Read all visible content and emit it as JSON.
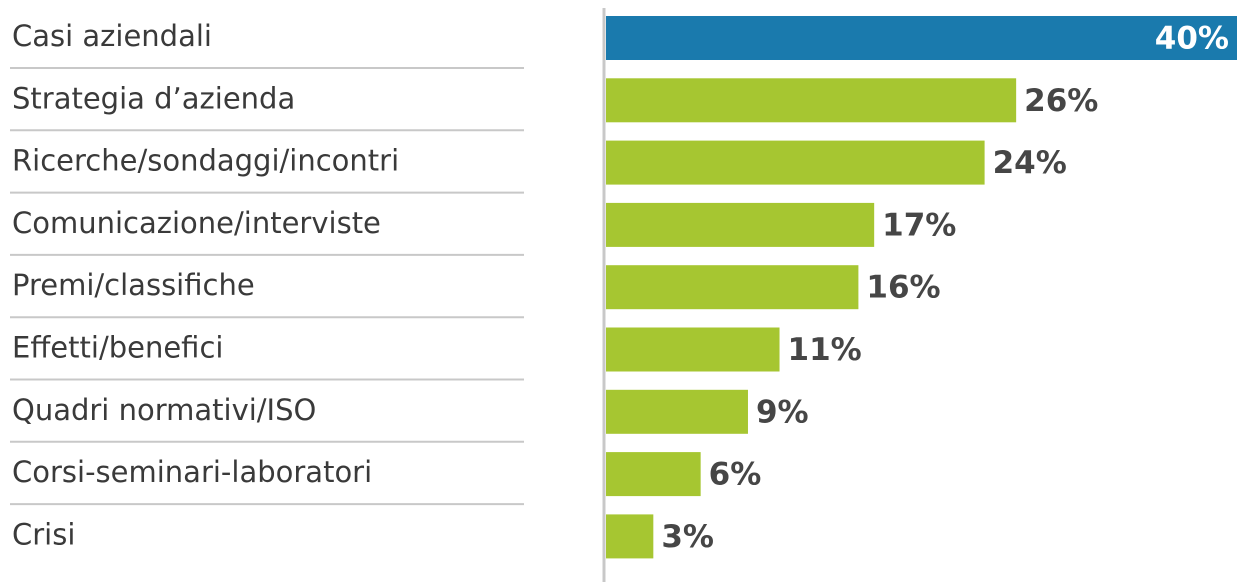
{
  "chart_data": {
    "type": "bar",
    "orientation": "horizontal",
    "categories": [
      "Casi aziendali",
      "Strategia d’azienda",
      "Ricerche/sondaggi/incontri",
      "Comunicazione/interviste",
      "Premi/classifiche",
      "Effetti/benefici",
      "Quadri normativi/ISO",
      "Corsi-seminari-laboratori",
      "Crisi"
    ],
    "values": [
      40,
      26,
      24,
      17,
      16,
      11,
      9,
      6,
      3
    ],
    "value_labels": [
      "40%",
      "26%",
      "24%",
      "17%",
      "16%",
      "11%",
      "9%",
      "6%",
      "3%"
    ],
    "colors": [
      "#1a7aad",
      "#a6c631",
      "#a6c631",
      "#a6c631",
      "#a6c631",
      "#a6c631",
      "#a6c631",
      "#a6c631",
      "#a6c631"
    ]
  }
}
